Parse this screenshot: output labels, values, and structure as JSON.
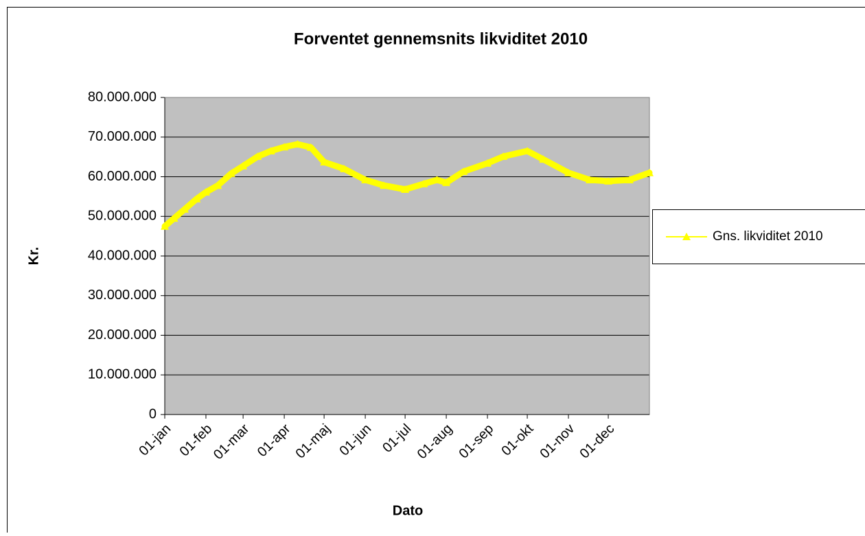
{
  "chart_data": {
    "type": "line",
    "title": "Forventet gennemsnits likviditet 2010",
    "xlabel": "Dato",
    "ylabel": "Kr.",
    "x": [
      0,
      7,
      15,
      24,
      31,
      40,
      50,
      59,
      70,
      80,
      90,
      100,
      110,
      120,
      135,
      151,
      165,
      181,
      195,
      205,
      212,
      225,
      243,
      255,
      273,
      285,
      304,
      320,
      334,
      350,
      365
    ],
    "series": [
      {
        "name": "Gns. likviditet 2010",
        "color": "#ffff00",
        "values": [
          47500000,
          49500000,
          51800000,
          54400000,
          56100000,
          57800000,
          60800000,
          62700000,
          65100000,
          66500000,
          67500000,
          68200000,
          67400000,
          63700000,
          62000000,
          59200000,
          57800000,
          56800000,
          58200000,
          59200000,
          58500000,
          61300000,
          63400000,
          65100000,
          66500000,
          64400000,
          61000000,
          59200000,
          58900000,
          59200000,
          61000000
        ]
      }
    ],
    "xlim": [
      0,
      365
    ],
    "xticks": [
      {
        "value": 0,
        "label": "01-jan"
      },
      {
        "value": 31,
        "label": "01-feb"
      },
      {
        "value": 59,
        "label": "01-mar"
      },
      {
        "value": 90,
        "label": "01-apr"
      },
      {
        "value": 120,
        "label": "01-maj"
      },
      {
        "value": 151,
        "label": "01-jun"
      },
      {
        "value": 181,
        "label": "01-jul"
      },
      {
        "value": 212,
        "label": "01-aug"
      },
      {
        "value": 243,
        "label": "01-sep"
      },
      {
        "value": 273,
        "label": "01-okt"
      },
      {
        "value": 304,
        "label": "01-nov"
      },
      {
        "value": 334,
        "label": "01-dec"
      }
    ],
    "ylim": [
      0,
      80000000
    ],
    "yticks": [
      0,
      {
        "value": 10000000,
        "label": "10.000.000"
      },
      {
        "value": 20000000,
        "label": "20.000.000"
      },
      {
        "value": 30000000,
        "label": "30.000.000"
      },
      {
        "value": 40000000,
        "label": "40.000.000"
      },
      {
        "value": 50000000,
        "label": "50.000.000"
      },
      {
        "value": 60000000,
        "label": "60.000.000"
      },
      {
        "value": 70000000,
        "label": "70.000.000"
      },
      {
        "value": 80000000,
        "label": "80.000.000"
      }
    ],
    "grid": true,
    "legend": "right"
  }
}
